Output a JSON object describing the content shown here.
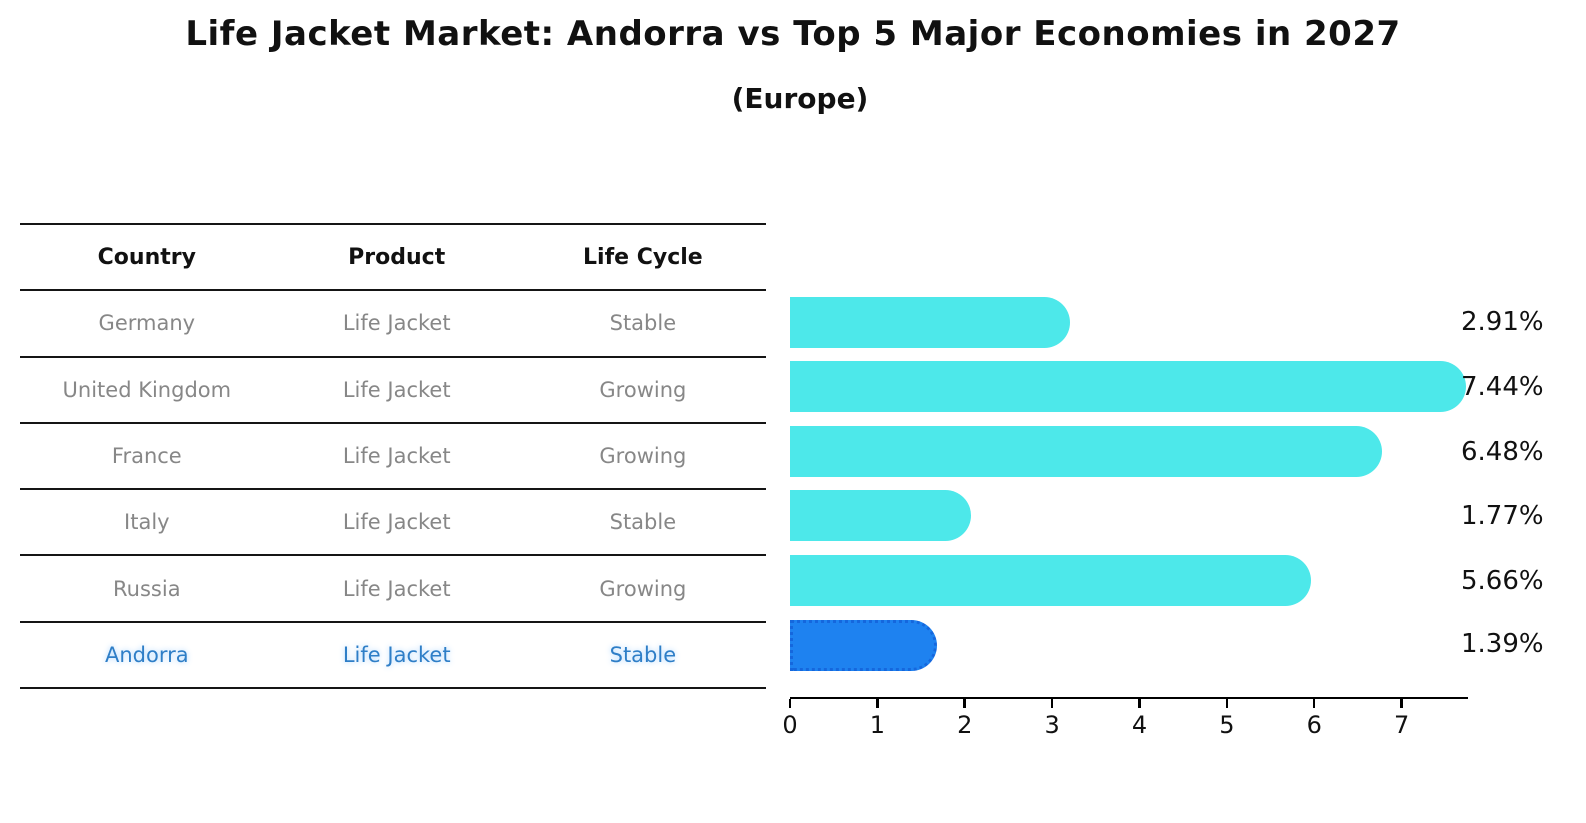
{
  "title": "Life Jacket Market: Andorra vs Top 5 Major Economies in 2027",
  "subtitle": "(Europe)",
  "table": {
    "headers": [
      "Country",
      "Product",
      "Life Cycle"
    ],
    "rows": [
      {
        "country": "Germany",
        "product": "Life Jacket",
        "life_cycle": "Stable",
        "highlight": false
      },
      {
        "country": "United Kingdom",
        "product": "Life Jacket",
        "life_cycle": "Growing",
        "highlight": false
      },
      {
        "country": "France",
        "product": "Life Jacket",
        "life_cycle": "Growing",
        "highlight": false
      },
      {
        "country": "Italy",
        "product": "Life Jacket",
        "life_cycle": "Stable",
        "highlight": false
      },
      {
        "country": "Russia",
        "product": "Life Jacket",
        "life_cycle": "Growing",
        "highlight": false
      },
      {
        "country": "Andorra",
        "product": "Life Jacket",
        "life_cycle": "Stable",
        "highlight": true
      }
    ]
  },
  "chart_data": {
    "type": "bar",
    "orientation": "horizontal",
    "title": "Life Jacket Market: Andorra vs Top 5 Major Economies in 2027 (Europe)",
    "categories": [
      "Germany",
      "United Kingdom",
      "France",
      "Italy",
      "Russia",
      "Andorra"
    ],
    "values": [
      2.91,
      7.44,
      6.48,
      1.77,
      5.66,
      1.39
    ],
    "value_labels": [
      "2.91%",
      "7.44%",
      "6.48%",
      "1.77%",
      "5.66%",
      "1.39%"
    ],
    "unit": "%",
    "xlim": [
      0,
      7.76
    ],
    "x_ticks": [
      0,
      1,
      2,
      3,
      4,
      5,
      6,
      7
    ],
    "grid": false,
    "legend": "none",
    "bar_color": "#4de8ea",
    "highlight_bar_color": "#1e82f0",
    "highlight_index": 5,
    "highlight_style": "dotted-border"
  },
  "colors": {
    "background": "#ffffff",
    "table_line": "#151515",
    "table_text": "#878787",
    "header_text": "#111111",
    "highlight_text": "#2e7ec7",
    "axis": "#000000"
  }
}
